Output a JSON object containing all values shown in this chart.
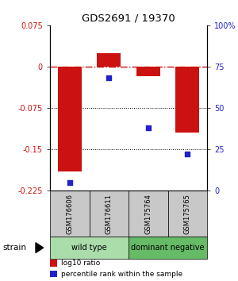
{
  "title": "GDS2691 / 19370",
  "samples": [
    "GSM176606",
    "GSM176611",
    "GSM175764",
    "GSM175765"
  ],
  "log10_ratio": [
    -0.19,
    0.025,
    -0.018,
    -0.12
  ],
  "percentile_rank": [
    5,
    68,
    38,
    22
  ],
  "bar_color": "#cc1111",
  "dot_color": "#2222cc",
  "ylim_left": [
    -0.225,
    0.075
  ],
  "ylim_right": [
    0,
    100
  ],
  "yticks_left": [
    0.075,
    0,
    -0.075,
    -0.15,
    -0.225
  ],
  "yticks_right": [
    100,
    75,
    50,
    25,
    0
  ],
  "ytick_labels_left": [
    "0.075",
    "0",
    "-0.075",
    "-0.15",
    "-0.225"
  ],
  "ytick_labels_right": [
    "100%",
    "75",
    "50",
    "25",
    "0"
  ],
  "groups": [
    {
      "label": "wild type",
      "indices": [
        0,
        1
      ],
      "color": "#aaddaa"
    },
    {
      "label": "dominant negative",
      "indices": [
        2,
        3
      ],
      "color": "#66bb66"
    }
  ],
  "strain_label": "strain",
  "legend_items": [
    {
      "color": "#cc1111",
      "label": "log10 ratio"
    },
    {
      "color": "#2222cc",
      "label": "percentile rank within the sample"
    }
  ],
  "hline_zero_color": "#cc1111",
  "hline_dotted_color": "#000000",
  "bar_width": 0.6,
  "sample_box_color": "#c8c8c8"
}
